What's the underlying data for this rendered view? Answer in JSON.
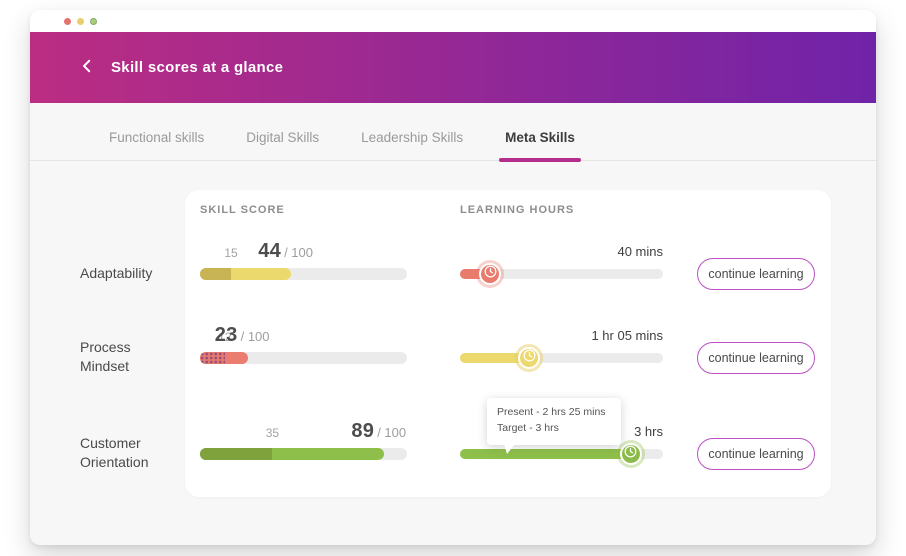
{
  "window": {
    "traffic_lights": {
      "close": "#e5736d",
      "minimize": "#e8cf6a",
      "zoom": "#a6cf7d"
    }
  },
  "header": {
    "title": "Skill scores at a glance",
    "gradient_from": "#bb2d82",
    "gradient_to": "#7023a8",
    "accent": "#b62d8d"
  },
  "tabs": [
    {
      "label": "Functional skills",
      "active": false
    },
    {
      "label": "Digital Skills",
      "active": false
    },
    {
      "label": "Leadership Skills",
      "active": false
    },
    {
      "label": "Meta Skills",
      "active": true
    }
  ],
  "table": {
    "columns": {
      "score": "SKILL SCORE",
      "hours": "LEARNING HOURS"
    },
    "rows": [
      {
        "label": "Adaptability",
        "score": {
          "previous": 15,
          "current": 44,
          "max_label": "/ 100"
        },
        "hours": {
          "label": "40 mins",
          "progress_pct": 15
        },
        "button": "continue learning",
        "colors": {
          "previous_seg": "#c8b454",
          "fill": "#ecd96d",
          "slider": "#e97b6d",
          "knob": "#e97b6d",
          "halo": "rgba(233,123,109,0.35)"
        }
      },
      {
        "label": "Process Mindset",
        "score": {
          "previous": 12,
          "current": 23,
          "max_label": "/ 100"
        },
        "hours": {
          "label": "1 hr 05 mins",
          "progress_pct": 34
        },
        "button": "continue learning",
        "colors": {
          "previous_seg": "#e47a6e",
          "fill": "#ea7d70",
          "slider": "#ecd96d",
          "knob": "#ecd96d",
          "halo": "rgba(231,206,101,0.5)"
        }
      },
      {
        "label": "Customer Orientation",
        "score": {
          "previous": 35,
          "current": 89,
          "max_label": "/ 100"
        },
        "hours": {
          "label": "3 hrs",
          "progress_pct": 84
        },
        "button": "continue learning",
        "colors": {
          "previous_seg": "#7fa23c",
          "fill": "#8fbf4b",
          "slider": "#8fbf4b",
          "knob": "#8cbb49",
          "halo": "rgba(143,191,75,0.35)"
        }
      }
    ]
  },
  "tooltip": {
    "line1": "Present - 2 hrs 25 mins",
    "line2": "Target - 3 hrs"
  }
}
